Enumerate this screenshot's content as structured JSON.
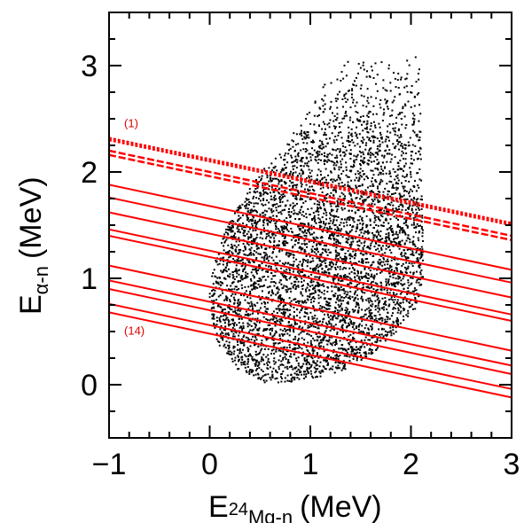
{
  "chart_data": {
    "type": "scatter",
    "xlabel": {
      "prefix": "E",
      "sub1": "24",
      "sub2": "Mg-n",
      "units": "(MeV)"
    },
    "ylabel": {
      "prefix": "E",
      "sub": "α-n",
      "units": "(MeV)"
    },
    "xlim": [
      -1,
      3
    ],
    "ylim": [
      -0.5,
      3.5
    ],
    "x_ticks": [
      -1,
      0,
      1,
      2,
      3
    ],
    "x_tick_labels": [
      "−1",
      "0",
      "1",
      "2",
      "3"
    ],
    "y_ticks": [
      0,
      1,
      2,
      3
    ],
    "y_tick_labels": [
      "0",
      "1",
      "2",
      "3"
    ],
    "grid": false,
    "colors": {
      "points": "#000000",
      "lines": "#ff0000",
      "annotation": "#e00000",
      "axis": "#000000"
    },
    "scatter": {
      "n_points": 5000,
      "boundary": [
        [
          0.55,
          0.02
        ],
        [
          0.75,
          0.02
        ],
        [
          1.0,
          0.05
        ],
        [
          1.3,
          0.12
        ],
        [
          1.6,
          0.28
        ],
        [
          1.85,
          0.48
        ],
        [
          2.05,
          0.72
        ],
        [
          2.12,
          1.0
        ],
        [
          2.12,
          1.5
        ],
        [
          2.1,
          2.0
        ],
        [
          2.1,
          2.6
        ],
        [
          2.1,
          3.1
        ],
        [
          1.6,
          3.05
        ],
        [
          1.3,
          3.1
        ],
        [
          1.1,
          2.75
        ],
        [
          1.0,
          2.6
        ],
        [
          0.75,
          2.25
        ],
        [
          0.5,
          2.0
        ],
        [
          0.3,
          1.7
        ],
        [
          0.15,
          1.45
        ],
        [
          0.05,
          1.2
        ],
        [
          0.0,
          0.95
        ],
        [
          0.0,
          0.7
        ],
        [
          0.05,
          0.45
        ],
        [
          0.15,
          0.28
        ],
        [
          0.3,
          0.12
        ]
      ]
    },
    "lines": [
      {
        "label": "(1)",
        "x": [
          -1,
          3
        ],
        "y": [
          2.32,
          1.52
        ],
        "style": "dotted"
      },
      {
        "x": [
          -1,
          3
        ],
        "y": [
          2.3,
          1.5
        ],
        "style": "dotted"
      },
      {
        "x": [
          -1,
          3
        ],
        "y": [
          2.2,
          1.4
        ],
        "style": "dashed"
      },
      {
        "x": [
          -1,
          3
        ],
        "y": [
          2.16,
          1.36
        ],
        "style": "dashed"
      },
      {
        "x": [
          -1,
          3
        ],
        "y": [
          1.88,
          1.08
        ],
        "style": "solid"
      },
      {
        "x": [
          -1,
          3
        ],
        "y": [
          1.76,
          0.96
        ],
        "style": "solid"
      },
      {
        "x": [
          -1,
          3
        ],
        "y": [
          1.62,
          0.82
        ],
        "style": "solid"
      },
      {
        "x": [
          -1,
          3
        ],
        "y": [
          1.46,
          0.66
        ],
        "style": "solid"
      },
      {
        "x": [
          -1,
          3
        ],
        "y": [
          1.4,
          0.6
        ],
        "style": "solid"
      },
      {
        "x": [
          -1,
          3
        ],
        "y": [
          1.12,
          0.32
        ],
        "style": "solid"
      },
      {
        "x": [
          -1,
          3
        ],
        "y": [
          0.98,
          0.18
        ],
        "style": "solid"
      },
      {
        "x": [
          -1,
          3
        ],
        "y": [
          0.9,
          0.1
        ],
        "style": "solid"
      },
      {
        "x": [
          -1,
          3
        ],
        "y": [
          0.76,
          -0.04
        ],
        "style": "solid"
      },
      {
        "label": "(14)",
        "x": [
          -1,
          3
        ],
        "y": [
          0.68,
          -0.12
        ],
        "style": "solid"
      }
    ],
    "annotations": [
      {
        "text": "(1)",
        "x": -0.85,
        "y": 2.42
      },
      {
        "text": "(14)",
        "x": -0.85,
        "y": 0.47
      }
    ]
  }
}
